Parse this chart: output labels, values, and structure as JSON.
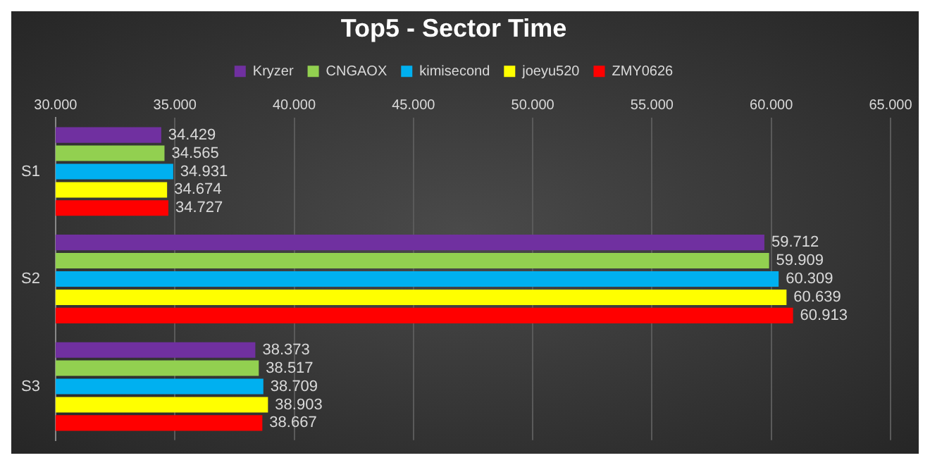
{
  "chart_data": {
    "type": "bar",
    "orientation": "horizontal",
    "title": "Top5 - Sector Time",
    "categories": [
      "S1",
      "S2",
      "S3"
    ],
    "series": [
      {
        "name": "Kryzer",
        "color": "#7030a0",
        "values": [
          34.429,
          59.712,
          38.373
        ]
      },
      {
        "name": "CNGAOX",
        "color": "#92d050",
        "values": [
          34.565,
          59.909,
          38.517
        ]
      },
      {
        "name": "kimisecond",
        "color": "#00b0f0",
        "values": [
          34.931,
          60.309,
          38.709
        ]
      },
      {
        "name": "joeyu520",
        "color": "#ffff00",
        "values": [
          34.674,
          60.639,
          38.903
        ]
      },
      {
        "name": "ZMY0626",
        "color": "#ff0000",
        "values": [
          34.727,
          60.913,
          38.667
        ]
      }
    ],
    "xlim": [
      30,
      65
    ],
    "xticks": [
      {
        "value": 30,
        "label": "30.000"
      },
      {
        "value": 35,
        "label": "35.000"
      },
      {
        "value": 40,
        "label": "40.000"
      },
      {
        "value": 45,
        "label": "45.000"
      },
      {
        "value": 50,
        "label": "50.000"
      },
      {
        "value": 55,
        "label": "55.000"
      },
      {
        "value": 60,
        "label": "60.000"
      },
      {
        "value": 65,
        "label": "65.000"
      }
    ],
    "grid": "x",
    "legend": "top",
    "data_labels": true
  }
}
